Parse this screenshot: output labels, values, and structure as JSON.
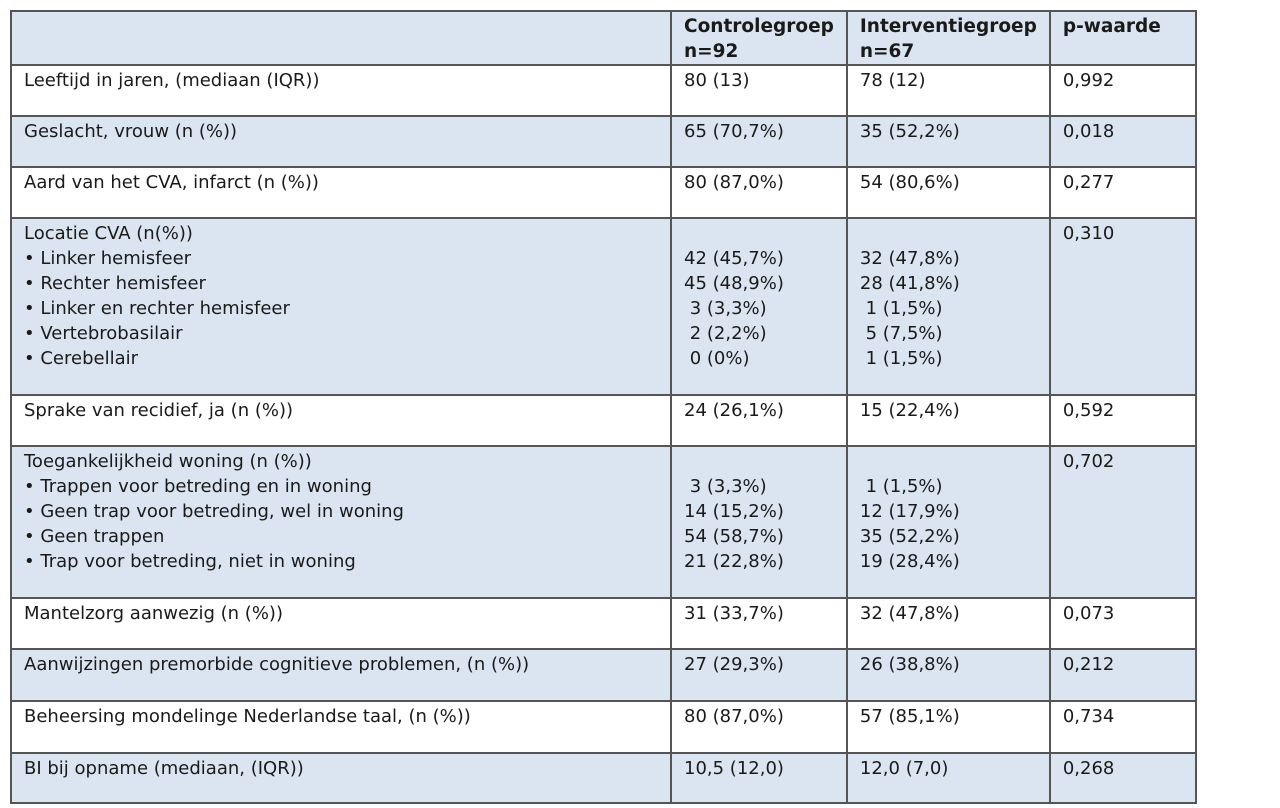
{
  "header": {
    "col0": "",
    "col1_line1": "Controlegroep",
    "col1_line2": "n=92",
    "col2_line1": "Interventiegroep",
    "col2_line2": "n=67",
    "col3": "p-waarde"
  },
  "rows": [
    {
      "label": "Leeftijd in jaren, (mediaan (IQR))",
      "control": "80 (13)",
      "intervention": "78 (12)",
      "p": "0,992"
    },
    {
      "label": "Geslacht, vrouw (n (%))",
      "control": "65 (70,7%)",
      "intervention": "35 (52,2%)",
      "p": "0,018"
    },
    {
      "label": "Aard van het CVA, infarct (n (%))",
      "control": "80 (87,0%)",
      "intervention": "54 (80,6%)",
      "p": "0,277"
    },
    {
      "label": "Locatie CVA (n(%))",
      "p": "0,310",
      "items": [
        {
          "label": "Linker hemisfeer",
          "control": "42 (45,7%)",
          "intervention": "32 (47,8%)"
        },
        {
          "label": "Rechter hemisfeer",
          "control": "45 (48,9%)",
          "intervention": "28 (41,8%)"
        },
        {
          "label": "Linker en rechter hemisfeer",
          "control": " 3 (3,3%)",
          "intervention": " 1 (1,5%)"
        },
        {
          "label": "Vertebrobasilair",
          "control": " 2 (2,2%)",
          "intervention": " 5 (7,5%)"
        },
        {
          "label": "Cerebellair",
          "control": " 0 (0%)",
          "intervention": " 1 (1,5%)"
        }
      ]
    },
    {
      "label": "Sprake van recidief, ja (n (%))",
      "control": "24 (26,1%)",
      "intervention": "15 (22,4%)",
      "p": "0,592"
    },
    {
      "label": "Toegankelijkheid woning (n (%))",
      "p": "0,702",
      "items": [
        {
          "label": "Trappen voor betreding en in woning",
          "control": " 3 (3,3%)",
          "intervention": " 1 (1,5%)"
        },
        {
          "label": "Geen trap voor betreding, wel in woning",
          "control": "14 (15,2%)",
          "intervention": "12 (17,9%)"
        },
        {
          "label": "Geen trappen",
          "control": "54 (58,7%)",
          "intervention": "35 (52,2%)"
        },
        {
          "label": "Trap voor betreding, niet in woning",
          "control": "21 (22,8%)",
          "intervention": "19 (28,4%)"
        }
      ]
    },
    {
      "label": "Mantelzorg aanwezig (n (%))",
      "control": "31 (33,7%)",
      "intervention": "32 (47,8%)",
      "p": "0,073"
    },
    {
      "label": "Aanwijzingen premorbide cognitieve problemen, (n (%))",
      "control": "27 (29,3%)",
      "intervention": "26 (38,8%)",
      "p": "0,212"
    },
    {
      "label": "Beheersing mondelinge Nederlandse taal, (n (%))",
      "control": "80 (87,0%)",
      "intervention": "57 (85,1%)",
      "p": "0,734"
    },
    {
      "label": "BI bij opname (mediaan, (IQR))",
      "control": "10,5 (12,0)",
      "intervention": "12,0 (7,0)",
      "p": "0,268"
    }
  ]
}
